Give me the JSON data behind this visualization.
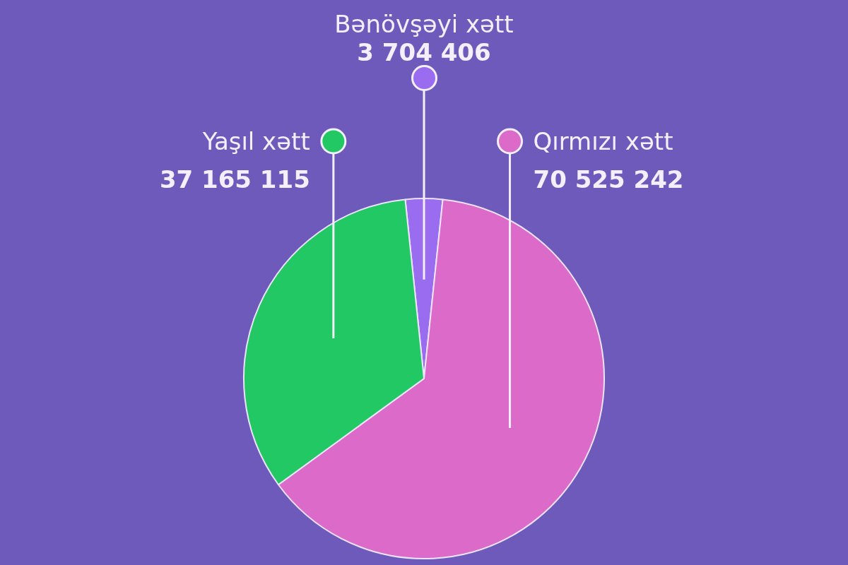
{
  "chart_data": {
    "type": "pie",
    "categories": [
      "Bənövşəyi xətt",
      "Qırmızı xətt",
      "Yaşıl xətt"
    ],
    "values": [
      3704406,
      70525242,
      37165115
    ],
    "value_labels": [
      "3 704 406",
      "70 525 242",
      "37 165 115"
    ],
    "colors": [
      "#9a6cf0",
      "#dc6ac8",
      "#22c864"
    ]
  }
}
